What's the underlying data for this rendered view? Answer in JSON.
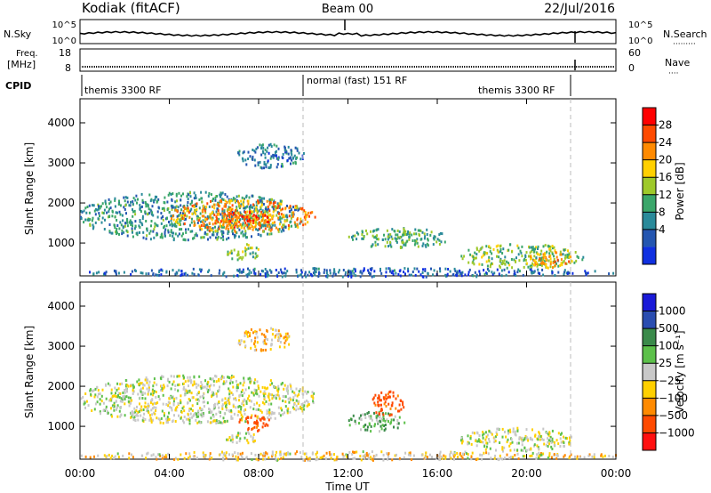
{
  "header": {
    "station": "Kodiak (fitACF)",
    "beam": "Beam 00",
    "date": "22/Jul/2016"
  },
  "noise_panel": {
    "left_label": "N.Sky",
    "right_label": "N.Search",
    "left_ticks": [
      "10^5",
      "10^0"
    ],
    "right_ticks": [
      "10^5",
      "10^0"
    ]
  },
  "freq_panel": {
    "left_label_1": "Freq.",
    "left_label_2": "[MHz]",
    "right_label": "Nave",
    "left_ticks": [
      "18",
      "8"
    ],
    "right_ticks": [
      "60",
      "0"
    ]
  },
  "cpid": {
    "label": "CPID",
    "segments": [
      {
        "text": "themis 3300 RF",
        "start_hour": 0,
        "end_hour": 10
      },
      {
        "text": "normal (fast) 151 RF",
        "start_hour": 10,
        "end_hour": 22
      },
      {
        "text": "themis 3300 RF",
        "start_hour": 22,
        "end_hour": 24
      }
    ]
  },
  "power_colorbar": {
    "label": "Power [dB]",
    "ticks": [
      "28",
      "24",
      "20",
      "16",
      "12",
      "8",
      "4"
    ],
    "colors": [
      "#ff0000",
      "#ff4a00",
      "#ff8a00",
      "#ffd000",
      "#9ec92a",
      "#3aa66a",
      "#2a8a9a",
      "#2456b0",
      "#1030e0"
    ]
  },
  "velocity_colorbar": {
    "label": "Velocity [m s⁻¹]",
    "ticks": [
      "1000",
      "500",
      "100",
      "25",
      "−25",
      "−100",
      "−500",
      "−1000"
    ],
    "colors": [
      "#1a1ad8",
      "#2a4db0",
      "#3a8a4a",
      "#5cc04a",
      "#c8c8c8",
      "#ffd000",
      "#ff8a00",
      "#ff4a00",
      "#ff1010"
    ]
  },
  "axes": {
    "ylabel": "Slant Range [km]",
    "xlabel": "Time UT",
    "y_ticks": [
      "4000",
      "3000",
      "2000",
      "1000"
    ],
    "x_ticks": [
      "00:00",
      "04:00",
      "08:00",
      "12:00",
      "16:00",
      "20:00",
      "00:00"
    ]
  },
  "chart_data": [
    {
      "type": "heatmap",
      "title": "",
      "quantity": "Power [dB]",
      "xlabel": "",
      "ylabel": "Slant Range [km]",
      "xlim_hours": [
        0,
        24
      ],
      "ylim": [
        180,
        4600
      ],
      "clim": [
        0,
        32
      ],
      "regions": [
        {
          "hours": [
            0.0,
            10.0
          ],
          "range_km": [
            1100,
            2300
          ],
          "power_db": 10
        },
        {
          "hours": [
            4.0,
            10.5
          ],
          "range_km": [
            1300,
            2100
          ],
          "power_db": 22
        },
        {
          "hours": [
            6.0,
            8.5
          ],
          "range_km": [
            1400,
            1800
          ],
          "power_db": 26
        },
        {
          "hours": [
            6.5,
            8.0
          ],
          "range_km": [
            600,
            1000
          ],
          "power_db": 14
        },
        {
          "hours": [
            7.0,
            10.0
          ],
          "range_km": [
            2900,
            3500
          ],
          "power_db": 8
        },
        {
          "hours": [
            12.0,
            16.5
          ],
          "range_km": [
            900,
            1400
          ],
          "power_db": 12
        },
        {
          "hours": [
            17.0,
            22.5
          ],
          "range_km": [
            400,
            1000
          ],
          "power_db": 14
        },
        {
          "hours": [
            20.0,
            22.0
          ],
          "range_km": [
            400,
            800
          ],
          "power_db": 22
        },
        {
          "hours": [
            0.0,
            24.0
          ],
          "range_km": [
            180,
            400
          ],
          "power_db": 6
        }
      ]
    },
    {
      "type": "heatmap",
      "title": "",
      "quantity": "Velocity [m s⁻¹]",
      "xlabel": "Time UT",
      "ylabel": "Slant Range [km]",
      "xlim_hours": [
        0,
        24
      ],
      "ylim": [
        180,
        4600
      ],
      "clim": [
        -1000,
        1000
      ],
      "regions": [
        {
          "hours": [
            0.0,
            10.5
          ],
          "range_km": [
            1100,
            2300
          ],
          "velocity": 0
        },
        {
          "hours": [
            7.0,
            8.5
          ],
          "range_km": [
            900,
            1300
          ],
          "velocity": -300
        },
        {
          "hours": [
            6.5,
            8.0
          ],
          "range_km": [
            600,
            900
          ],
          "velocity": 0
        },
        {
          "hours": [
            7.0,
            9.5
          ],
          "range_km": [
            2900,
            3500
          ],
          "velocity": -50
        },
        {
          "hours": [
            12.0,
            14.5
          ],
          "range_km": [
            900,
            1400
          ],
          "velocity": 60
        },
        {
          "hours": [
            13.0,
            14.5
          ],
          "range_km": [
            1300,
            1900
          ],
          "velocity": -300
        },
        {
          "hours": [
            17.0,
            22.0
          ],
          "range_km": [
            400,
            1000
          ],
          "velocity": 0
        },
        {
          "hours": [
            0.0,
            24.0
          ],
          "range_km": [
            180,
            400
          ],
          "velocity": -30
        }
      ]
    }
  ]
}
